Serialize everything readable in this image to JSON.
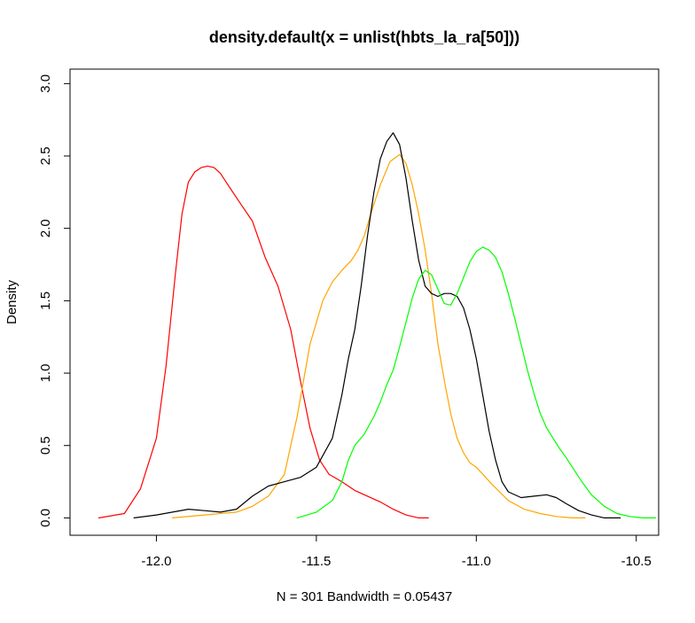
{
  "chart_data": {
    "type": "line",
    "title": "density.default(x = unlist(hbts_la_ra[50]))",
    "xlabel": "N = 301   Bandwidth = 0.05437",
    "ylabel": "Density",
    "xlim": [
      -12.27,
      -10.43
    ],
    "ylim": [
      -0.12,
      3.1
    ],
    "xticks": [
      -12.0,
      -11.5,
      -11.0,
      -10.5
    ],
    "xtick_labels": [
      "-12.0",
      "-11.5",
      "-11.0",
      "-10.5"
    ],
    "yticks": [
      0.0,
      0.5,
      1.0,
      1.5,
      2.0,
      2.5,
      3.0
    ],
    "ytick_labels": [
      "0.0",
      "0.5",
      "1.0",
      "1.5",
      "2.0",
      "2.5",
      "3.0"
    ],
    "grid": false,
    "legend": false,
    "series": [
      {
        "color": "#ff0000",
        "x": [
          -12.18,
          -12.1,
          -12.05,
          -12.0,
          -11.97,
          -11.94,
          -11.92,
          -11.9,
          -11.88,
          -11.86,
          -11.84,
          -11.82,
          -11.8,
          -11.77,
          -11.74,
          -11.7,
          -11.66,
          -11.62,
          -11.58,
          -11.55,
          -11.52,
          -11.49,
          -11.46,
          -11.42,
          -11.38,
          -11.34,
          -11.3,
          -11.26,
          -11.22,
          -11.18,
          -11.15
        ],
        "y": [
          0.0,
          0.03,
          0.2,
          0.55,
          1.05,
          1.7,
          2.1,
          2.32,
          2.39,
          2.42,
          2.43,
          2.42,
          2.38,
          2.28,
          2.18,
          2.05,
          1.8,
          1.6,
          1.3,
          0.95,
          0.62,
          0.4,
          0.3,
          0.25,
          0.19,
          0.15,
          0.11,
          0.06,
          0.02,
          0.0,
          0.0
        ]
      },
      {
        "color": "#ffa500",
        "x": [
          -11.95,
          -11.85,
          -11.75,
          -11.7,
          -11.65,
          -11.6,
          -11.56,
          -11.52,
          -11.48,
          -11.45,
          -11.42,
          -11.39,
          -11.37,
          -11.35,
          -11.33,
          -11.3,
          -11.27,
          -11.24,
          -11.22,
          -11.2,
          -11.18,
          -11.16,
          -11.14,
          -11.12,
          -11.1,
          -11.08,
          -11.06,
          -11.04,
          -11.02,
          -11.0,
          -10.95,
          -10.9,
          -10.85,
          -10.8,
          -10.75,
          -10.7,
          -10.66
        ],
        "y": [
          0.0,
          0.02,
          0.04,
          0.08,
          0.15,
          0.3,
          0.7,
          1.2,
          1.5,
          1.63,
          1.71,
          1.78,
          1.85,
          1.95,
          2.1,
          2.3,
          2.46,
          2.51,
          2.45,
          2.3,
          2.1,
          1.85,
          1.55,
          1.2,
          0.95,
          0.72,
          0.55,
          0.45,
          0.38,
          0.35,
          0.23,
          0.12,
          0.06,
          0.03,
          0.01,
          0.0,
          0.0
        ]
      },
      {
        "color": "#000000",
        "x": [
          -12.07,
          -12.0,
          -11.95,
          -11.9,
          -11.85,
          -11.8,
          -11.75,
          -11.7,
          -11.65,
          -11.6,
          -11.55,
          -11.5,
          -11.45,
          -11.42,
          -11.4,
          -11.38,
          -11.36,
          -11.34,
          -11.32,
          -11.3,
          -11.28,
          -11.26,
          -11.24,
          -11.22,
          -11.2,
          -11.18,
          -11.16,
          -11.14,
          -11.12,
          -11.1,
          -11.08,
          -11.06,
          -11.04,
          -11.02,
          -11.0,
          -10.98,
          -10.96,
          -10.94,
          -10.92,
          -10.9,
          -10.86,
          -10.82,
          -10.78,
          -10.75,
          -10.72,
          -10.68,
          -10.64,
          -10.6,
          -10.55
        ],
        "y": [
          0.0,
          0.02,
          0.04,
          0.06,
          0.05,
          0.04,
          0.06,
          0.15,
          0.22,
          0.25,
          0.28,
          0.35,
          0.55,
          0.85,
          1.1,
          1.3,
          1.6,
          1.95,
          2.25,
          2.48,
          2.6,
          2.66,
          2.58,
          2.35,
          2.05,
          1.78,
          1.6,
          1.55,
          1.53,
          1.55,
          1.55,
          1.53,
          1.45,
          1.3,
          1.1,
          0.85,
          0.6,
          0.4,
          0.25,
          0.18,
          0.14,
          0.15,
          0.16,
          0.14,
          0.1,
          0.05,
          0.02,
          0.0,
          0.0
        ]
      },
      {
        "color": "#00ff00",
        "x": [
          -11.56,
          -11.5,
          -11.45,
          -11.42,
          -11.4,
          -11.38,
          -11.35,
          -11.32,
          -11.3,
          -11.28,
          -11.26,
          -11.24,
          -11.22,
          -11.2,
          -11.18,
          -11.16,
          -11.14,
          -11.12,
          -11.1,
          -11.08,
          -11.06,
          -11.04,
          -11.02,
          -11.0,
          -10.98,
          -10.96,
          -10.94,
          -10.92,
          -10.9,
          -10.88,
          -10.86,
          -10.84,
          -10.82,
          -10.8,
          -10.78,
          -10.76,
          -10.74,
          -10.72,
          -10.7,
          -10.67,
          -10.64,
          -10.6,
          -10.56,
          -10.52,
          -10.48,
          -10.44
        ],
        "y": [
          0.0,
          0.04,
          0.12,
          0.25,
          0.4,
          0.5,
          0.58,
          0.7,
          0.8,
          0.92,
          1.02,
          1.18,
          1.35,
          1.52,
          1.65,
          1.71,
          1.68,
          1.58,
          1.48,
          1.47,
          1.55,
          1.66,
          1.77,
          1.84,
          1.87,
          1.85,
          1.8,
          1.7,
          1.55,
          1.38,
          1.2,
          1.02,
          0.86,
          0.72,
          0.62,
          0.55,
          0.48,
          0.42,
          0.35,
          0.25,
          0.16,
          0.08,
          0.03,
          0.01,
          0.0,
          0.0
        ]
      }
    ]
  }
}
